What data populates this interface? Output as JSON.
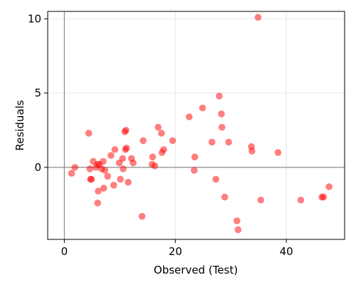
{
  "chart_data": {
    "type": "scatter",
    "title": "",
    "xlabel": "Observed (Test)",
    "ylabel": "Residuals",
    "xlim": [
      -3,
      50.5
    ],
    "ylim": [
      -4.85,
      10.5
    ],
    "xticks": [
      0,
      20,
      40
    ],
    "yticks": [
      0,
      5,
      10
    ],
    "grid": true,
    "reference_lines": {
      "x": 0,
      "y": 0
    },
    "marker_color": "#ff0000",
    "marker_opacity": 0.5,
    "points": [
      {
        "x": 1.3,
        "y": -0.4
      },
      {
        "x": 1.9,
        "y": 0.0
      },
      {
        "x": 4.4,
        "y": 2.3
      },
      {
        "x": 4.6,
        "y": -0.1
      },
      {
        "x": 4.7,
        "y": -0.8
      },
      {
        "x": 4.9,
        "y": -0.8
      },
      {
        "x": 5.2,
        "y": 0.4
      },
      {
        "x": 5.7,
        "y": 0.0
      },
      {
        "x": 6.0,
        "y": 0.2
      },
      {
        "x": 6.0,
        "y": -2.4
      },
      {
        "x": 6.1,
        "y": -1.6
      },
      {
        "x": 6.3,
        "y": 0.2
      },
      {
        "x": 6.7,
        "y": -0.1
      },
      {
        "x": 7.0,
        "y": 0.4
      },
      {
        "x": 7.1,
        "y": -1.4
      },
      {
        "x": 7.3,
        "y": -0.2
      },
      {
        "x": 7.8,
        "y": -0.6
      },
      {
        "x": 8.4,
        "y": 0.8
      },
      {
        "x": 8.9,
        "y": -1.2
      },
      {
        "x": 9.1,
        "y": 1.2
      },
      {
        "x": 9.9,
        "y": 0.3
      },
      {
        "x": 10.1,
        "y": -0.8
      },
      {
        "x": 10.5,
        "y": 0.6
      },
      {
        "x": 10.6,
        "y": -0.1
      },
      {
        "x": 10.9,
        "y": 2.4
      },
      {
        "x": 11.0,
        "y": 1.2
      },
      {
        "x": 11.1,
        "y": 2.5
      },
      {
        "x": 11.2,
        "y": 1.3
      },
      {
        "x": 11.5,
        "y": -1.0
      },
      {
        "x": 12.1,
        "y": 0.6
      },
      {
        "x": 12.4,
        "y": 0.3
      },
      {
        "x": 14.0,
        "y": -3.3
      },
      {
        "x": 14.2,
        "y": 1.8
      },
      {
        "x": 15.8,
        "y": 0.2
      },
      {
        "x": 15.9,
        "y": 0.7
      },
      {
        "x": 16.3,
        "y": 0.1
      },
      {
        "x": 16.9,
        "y": 2.7
      },
      {
        "x": 17.5,
        "y": 2.3
      },
      {
        "x": 17.6,
        "y": 1.0
      },
      {
        "x": 17.9,
        "y": 1.2
      },
      {
        "x": 19.5,
        "y": 1.8
      },
      {
        "x": 22.5,
        "y": 3.4
      },
      {
        "x": 23.4,
        "y": -0.2
      },
      {
        "x": 23.5,
        "y": 0.7
      },
      {
        "x": 24.9,
        "y": 4.0
      },
      {
        "x": 26.6,
        "y": 1.7
      },
      {
        "x": 27.3,
        "y": -0.8
      },
      {
        "x": 27.9,
        "y": 4.8
      },
      {
        "x": 28.3,
        "y": 3.6
      },
      {
        "x": 28.4,
        "y": 2.7
      },
      {
        "x": 28.9,
        "y": -2.0
      },
      {
        "x": 29.6,
        "y": 1.7
      },
      {
        "x": 31.1,
        "y": -3.6
      },
      {
        "x": 31.3,
        "y": -4.2
      },
      {
        "x": 33.7,
        "y": 1.4
      },
      {
        "x": 33.8,
        "y": 1.1
      },
      {
        "x": 34.9,
        "y": 10.1
      },
      {
        "x": 35.4,
        "y": -2.2
      },
      {
        "x": 38.5,
        "y": 1.0
      },
      {
        "x": 42.6,
        "y": -2.2
      },
      {
        "x": 46.4,
        "y": -2.0
      },
      {
        "x": 46.7,
        "y": -2.0
      },
      {
        "x": 47.7,
        "y": -1.3
      }
    ]
  }
}
